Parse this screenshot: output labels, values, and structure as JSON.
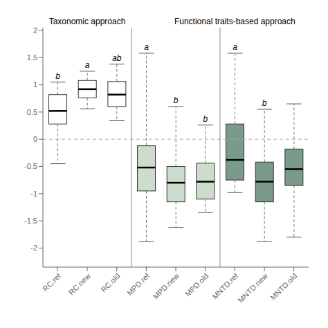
{
  "chart_data": {
    "type": "box",
    "categories": [
      "RC.ref",
      "RC.new",
      "RC.old",
      "MPD.ref",
      "MPD.new",
      "MPD.old",
      "MNTD.ref",
      "MNTD.new",
      "MNTD.old"
    ],
    "values": [
      {
        "median": 0.52,
        "q1": 0.28,
        "q3": 0.82,
        "whisker_low": -0.45,
        "whisker_high": 1.05
      },
      {
        "median": 0.92,
        "q1": 0.76,
        "q3": 1.08,
        "whisker_low": 0.56,
        "whisker_high": 1.25
      },
      {
        "median": 0.82,
        "q1": 0.6,
        "q3": 1.06,
        "whisker_low": 0.34,
        "whisker_high": 1.38
      },
      {
        "median": -0.52,
        "q1": -0.95,
        "q3": -0.12,
        "whisker_low": -1.88,
        "whisker_high": 1.58
      },
      {
        "median": -0.8,
        "q1": -1.15,
        "q3": -0.5,
        "whisker_low": -1.62,
        "whisker_high": 0.6
      },
      {
        "median": -0.78,
        "q1": -1.1,
        "q3": -0.44,
        "whisker_low": -1.35,
        "whisker_high": 0.26
      },
      {
        "median": -0.38,
        "q1": -0.75,
        "q3": 0.28,
        "whisker_low": -0.98,
        "whisker_high": 1.58
      },
      {
        "median": -0.78,
        "q1": -1.15,
        "q3": -0.42,
        "whisker_low": -1.88,
        "whisker_high": 0.55
      },
      {
        "median": -0.55,
        "q1": -0.85,
        "q3": -0.18,
        "whisker_low": -1.8,
        "whisker_high": 0.65
      }
    ],
    "colors": [
      "#ffffff",
      "#ffffff",
      "#ffffff",
      "#cddccd",
      "#cddccd",
      "#cddccd",
      "#7a9a8a",
      "#7a9a8a",
      "#7a9a8a"
    ],
    "letters": [
      "b",
      "a",
      "ab",
      "a",
      "b",
      "b",
      "a",
      "b",
      null
    ],
    "annotations": [
      {
        "text": "Taxonomic approach",
        "x": "RC.new"
      },
      {
        "text": "Functional traits-based approach",
        "x": "MNTD.ref"
      }
    ],
    "reference_y": 0.0,
    "ylim": [
      -2.35,
      2.05
    ],
    "yticks": [
      -2,
      -1.5,
      -1,
      -0.5,
      0,
      0.5,
      1,
      1.5,
      2
    ],
    "grid": false
  }
}
